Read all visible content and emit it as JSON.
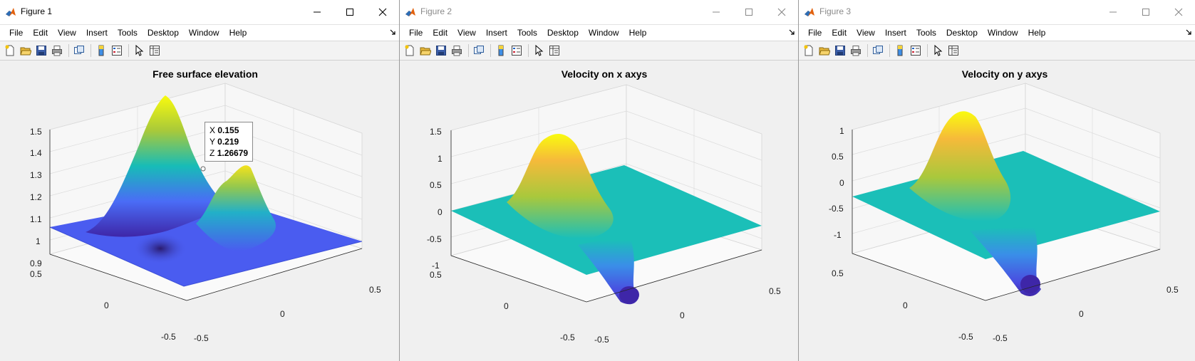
{
  "figures": [
    {
      "window_title": "Figure 1",
      "plot_title": "Free surface elevation",
      "z_ticks": [
        "1.5",
        "1.4",
        "1.3",
        "1.2",
        "1.1",
        "1",
        "0.9"
      ],
      "y_ticks": [
        "0.5",
        "0",
        "-0.5"
      ],
      "x_ticks": [
        "-0.5",
        "0",
        "0.5"
      ],
      "datatip": {
        "x_label": "X",
        "x_value": "0.155",
        "y_label": "Y",
        "y_value": "0.219",
        "z_label": "Z",
        "z_value": "1.26679"
      }
    },
    {
      "window_title": "Figure 2",
      "plot_title": "Velocity on x axys",
      "z_ticks": [
        "1.5",
        "1",
        "0.5",
        "0",
        "-0.5",
        "-1"
      ],
      "y_ticks": [
        "0.5",
        "0",
        "-0.5"
      ],
      "x_ticks": [
        "-0.5",
        "0",
        "0.5"
      ]
    },
    {
      "window_title": "Figure 3",
      "plot_title": "Velocity on y axys",
      "z_ticks": [
        "1",
        "0.5",
        "0",
        "-0.5",
        "-1"
      ],
      "y_ticks": [
        "0.5",
        "0",
        "-0.5"
      ],
      "x_ticks": [
        "-0.5",
        "0",
        "0.5"
      ]
    }
  ],
  "menu": [
    "File",
    "Edit",
    "View",
    "Insert",
    "Tools",
    "Desktop",
    "Window",
    "Help"
  ],
  "toolbar_icons": [
    "new-figure-icon",
    "open-file-icon",
    "save-icon",
    "print-icon",
    "link-plot-icon",
    "colorbar-icon",
    "legend-icon",
    "edit-plot-icon",
    "property-inspector-icon"
  ],
  "colors": {
    "parula_dark": "#3e26a8",
    "parula_blue": "#4a6cf6",
    "parula_teal": "#17bcb7",
    "parula_yellow": "#f9fb0e",
    "flat_teal": "#1bbfb8"
  }
}
